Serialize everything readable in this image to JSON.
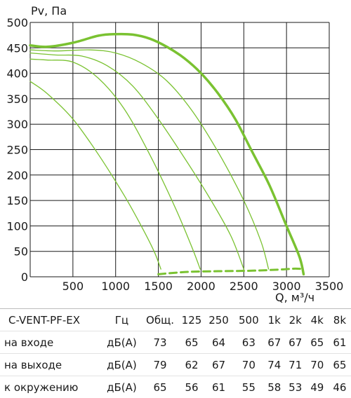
{
  "chart_data": {
    "type": "line",
    "y_axis_label": "Pv, Па",
    "x_axis_label": "Q, м³/ч",
    "xlim": [
      0,
      3500
    ],
    "ylim": [
      0,
      500
    ],
    "x_ticks": [
      500,
      1000,
      1500,
      2000,
      2500,
      3000,
      3500
    ],
    "y_ticks": [
      0,
      50,
      100,
      150,
      200,
      250,
      300,
      350,
      400,
      450,
      500
    ],
    "colors": {
      "curve": "#7ac231",
      "grid": "#1a1a1a"
    },
    "series": [
      {
        "values": [
          [
            0,
            455
          ],
          [
            200,
            452
          ],
          [
            500,
            460
          ],
          [
            800,
            474
          ],
          [
            1000,
            477
          ],
          [
            1200,
            476
          ],
          [
            1400,
            468
          ],
          [
            1600,
            452
          ],
          [
            1800,
            430
          ],
          [
            2000,
            400
          ],
          [
            2200,
            360
          ],
          [
            2400,
            310
          ],
          [
            2600,
            245
          ],
          [
            2800,
            180
          ],
          [
            3000,
            100
          ],
          [
            3150,
            40
          ],
          [
            3200,
            5
          ]
        ],
        "bold": true
      },
      {
        "values": [
          [
            0,
            446
          ],
          [
            300,
            444
          ],
          [
            700,
            446
          ],
          [
            1000,
            440
          ],
          [
            1300,
            420
          ],
          [
            1600,
            385
          ],
          [
            1900,
            325
          ],
          [
            2200,
            245
          ],
          [
            2500,
            150
          ],
          [
            2700,
            70
          ],
          [
            2790,
            15
          ]
        ]
      },
      {
        "values": [
          [
            0,
            440
          ],
          [
            300,
            436
          ],
          [
            600,
            434
          ],
          [
            900,
            415
          ],
          [
            1200,
            375
          ],
          [
            1500,
            310
          ],
          [
            1800,
            235
          ],
          [
            2100,
            155
          ],
          [
            2350,
            80
          ],
          [
            2500,
            15
          ]
        ]
      },
      {
        "values": [
          [
            0,
            428
          ],
          [
            200,
            426
          ],
          [
            500,
            422
          ],
          [
            800,
            390
          ],
          [
            1100,
            330
          ],
          [
            1400,
            240
          ],
          [
            1700,
            135
          ],
          [
            1900,
            55
          ],
          [
            1990,
            15
          ]
        ]
      },
      {
        "values": [
          [
            0,
            384
          ],
          [
            200,
            360
          ],
          [
            500,
            310
          ],
          [
            800,
            240
          ],
          [
            1100,
            160
          ],
          [
            1300,
            100
          ],
          [
            1450,
            50
          ],
          [
            1530,
            15
          ]
        ]
      },
      {
        "values": [
          [
            1500,
            5
          ],
          [
            1700,
            8
          ],
          [
            1900,
            10
          ],
          [
            2200,
            11
          ],
          [
            2600,
            12
          ],
          [
            2900,
            14
          ],
          [
            3100,
            16
          ],
          [
            3200,
            15
          ]
        ],
        "dashed": true
      }
    ]
  },
  "table": {
    "model": "C-VENT-PF-EX",
    "hz": "Гц",
    "total": "Общ.",
    "bands": [
      "125",
      "250",
      "500",
      "1k",
      "2k",
      "4k",
      "8k"
    ],
    "rows": [
      {
        "label": "на входе",
        "unit": "дБ(А)",
        "total": "73",
        "values": [
          "65",
          "64",
          "63",
          "67",
          "67",
          "65",
          "61"
        ]
      },
      {
        "label": "на выходе",
        "unit": "дБ(А)",
        "total": "79",
        "values": [
          "62",
          "67",
          "70",
          "74",
          "71",
          "70",
          "65"
        ]
      },
      {
        "label": "к окружению",
        "unit": "дБ(А)",
        "total": "65",
        "values": [
          "56",
          "61",
          "55",
          "58",
          "53",
          "49",
          "46"
        ]
      }
    ]
  }
}
